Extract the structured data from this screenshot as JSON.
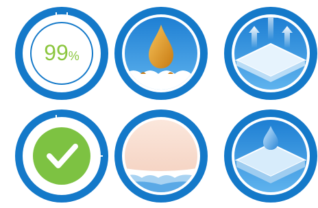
{
  "badge": {
    "number": "99",
    "unit": "%"
  }
}
